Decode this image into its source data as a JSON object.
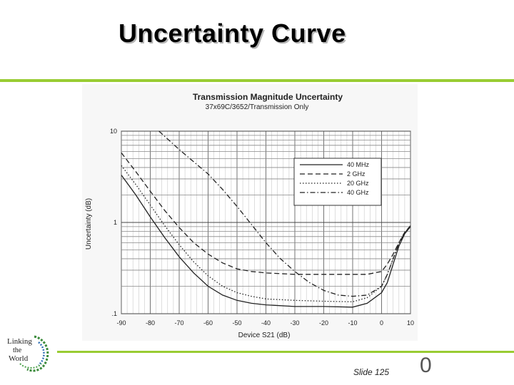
{
  "slide": {
    "title": "Uncertainty Curve",
    "footer": "Slide 125",
    "page_number": "0",
    "accent_color": "#99cc33",
    "logo_text": [
      "Linking",
      "the",
      "World"
    ]
  },
  "chart_data": {
    "type": "line",
    "title": "Transmission Magnitude Uncertainty",
    "subtitle": "37x69C/3652/Transmission Only",
    "xlabel": "Device S21 (dB)",
    "ylabel": "Uncertainty (dB)",
    "xlim": [
      -90,
      10
    ],
    "ylim": [
      0.1,
      10
    ],
    "yscale": "log",
    "grid": true,
    "legend_position": "top-right",
    "x_ticks": [
      "-90",
      "-80",
      "-70",
      "-60",
      "-50",
      "-40",
      "-30",
      "-20",
      "-10",
      "0",
      "10"
    ],
    "y_ticks": [
      ".1",
      "1",
      "10"
    ],
    "series": [
      {
        "name": "40 MHz",
        "dash": "solid",
        "points": [
          [
            -90,
            3.3
          ],
          [
            -85,
            2.0
          ],
          [
            -80,
            1.15
          ],
          [
            -75,
            0.68
          ],
          [
            -70,
            0.42
          ],
          [
            -65,
            0.28
          ],
          [
            -60,
            0.2
          ],
          [
            -55,
            0.16
          ],
          [
            -50,
            0.14
          ],
          [
            -45,
            0.13
          ],
          [
            -40,
            0.125
          ],
          [
            -30,
            0.12
          ],
          [
            -20,
            0.12
          ],
          [
            -10,
            0.118
          ],
          [
            -5,
            0.13
          ],
          [
            0,
            0.17
          ],
          [
            2,
            0.22
          ],
          [
            4,
            0.35
          ],
          [
            6,
            0.55
          ],
          [
            8,
            0.75
          ],
          [
            10,
            0.9
          ]
        ]
      },
      {
        "name": "2 GHz",
        "dash": "dashed",
        "points": [
          [
            -90,
            5.8
          ],
          [
            -85,
            3.6
          ],
          [
            -80,
            2.2
          ],
          [
            -75,
            1.35
          ],
          [
            -70,
            0.88
          ],
          [
            -65,
            0.6
          ],
          [
            -60,
            0.45
          ],
          [
            -55,
            0.36
          ],
          [
            -50,
            0.31
          ],
          [
            -45,
            0.29
          ],
          [
            -40,
            0.28
          ],
          [
            -30,
            0.27
          ],
          [
            -20,
            0.27
          ],
          [
            -10,
            0.27
          ],
          [
            -5,
            0.27
          ],
          [
            0,
            0.29
          ],
          [
            2,
            0.35
          ],
          [
            4,
            0.45
          ],
          [
            6,
            0.6
          ],
          [
            8,
            0.78
          ],
          [
            10,
            0.92
          ]
        ]
      },
      {
        "name": "20 GHz",
        "dash": "dotted",
        "points": [
          [
            -90,
            4.2
          ],
          [
            -85,
            2.6
          ],
          [
            -80,
            1.55
          ],
          [
            -75,
            0.92
          ],
          [
            -70,
            0.57
          ],
          [
            -65,
            0.37
          ],
          [
            -60,
            0.26
          ],
          [
            -55,
            0.2
          ],
          [
            -50,
            0.17
          ],
          [
            -45,
            0.155
          ],
          [
            -40,
            0.145
          ],
          [
            -30,
            0.14
          ],
          [
            -20,
            0.137
          ],
          [
            -10,
            0.135
          ],
          [
            -5,
            0.15
          ],
          [
            0,
            0.2
          ],
          [
            2,
            0.27
          ],
          [
            4,
            0.4
          ],
          [
            6,
            0.6
          ],
          [
            8,
            0.78
          ],
          [
            10,
            0.9
          ]
        ]
      },
      {
        "name": "40 GHz",
        "dash": "dash-dot",
        "points": [
          [
            -77,
            10
          ],
          [
            -70,
            6.3
          ],
          [
            -60,
            3.4
          ],
          [
            -55,
            2.3
          ],
          [
            -50,
            1.5
          ],
          [
            -45,
            0.95
          ],
          [
            -40,
            0.6
          ],
          [
            -35,
            0.4
          ],
          [
            -30,
            0.29
          ],
          [
            -25,
            0.22
          ],
          [
            -20,
            0.18
          ],
          [
            -15,
            0.16
          ],
          [
            -10,
            0.155
          ],
          [
            -5,
            0.16
          ],
          [
            0,
            0.2
          ],
          [
            2,
            0.27
          ],
          [
            4,
            0.4
          ],
          [
            6,
            0.58
          ],
          [
            8,
            0.77
          ],
          [
            10,
            0.9
          ]
        ]
      }
    ]
  }
}
